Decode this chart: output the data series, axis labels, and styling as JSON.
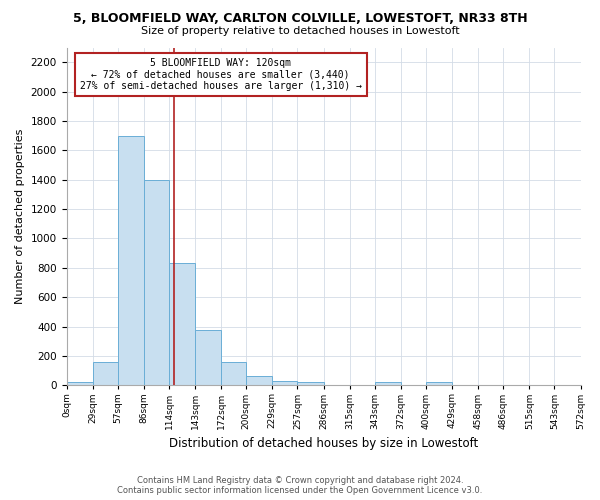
{
  "title": "5, BLOOMFIELD WAY, CARLTON COLVILLE, LOWESTOFT, NR33 8TH",
  "subtitle": "Size of property relative to detached houses in Lowestoft",
  "xlabel": "Distribution of detached houses by size in Lowestoft",
  "ylabel": "Number of detached properties",
  "bar_color": "#c8dff0",
  "bar_edge_color": "#6aaed6",
  "highlight_color": "#b22222",
  "bin_edges": [
    0,
    29,
    57,
    86,
    114,
    143,
    172,
    200,
    229,
    257,
    286,
    315,
    343,
    372,
    400,
    429,
    458,
    486,
    515,
    543,
    572
  ],
  "bar_heights": [
    20,
    160,
    1700,
    1400,
    830,
    380,
    160,
    65,
    30,
    25,
    0,
    0,
    20,
    0,
    20,
    0,
    0,
    0,
    0,
    0
  ],
  "tick_labels": [
    "0sqm",
    "29sqm",
    "57sqm",
    "86sqm",
    "114sqm",
    "143sqm",
    "172sqm",
    "200sqm",
    "229sqm",
    "257sqm",
    "286sqm",
    "315sqm",
    "343sqm",
    "372sqm",
    "400sqm",
    "429sqm",
    "458sqm",
    "486sqm",
    "515sqm",
    "543sqm",
    "572sqm"
  ],
  "property_name": "5 BLOOMFIELD WAY: 120sqm",
  "pct_smaller": 72,
  "n_smaller": 3440,
  "pct_semi_larger": 27,
  "n_semi_larger": 1310,
  "vline_x": 120,
  "ylim": [
    0,
    2300
  ],
  "yticks": [
    0,
    200,
    400,
    600,
    800,
    1000,
    1200,
    1400,
    1600,
    1800,
    2000,
    2200
  ],
  "footer_line1": "Contains HM Land Registry data © Crown copyright and database right 2024.",
  "footer_line2": "Contains public sector information licensed under the Open Government Licence v3.0.",
  "bg_color": "#ffffff",
  "grid_color": "#d3dce6"
}
